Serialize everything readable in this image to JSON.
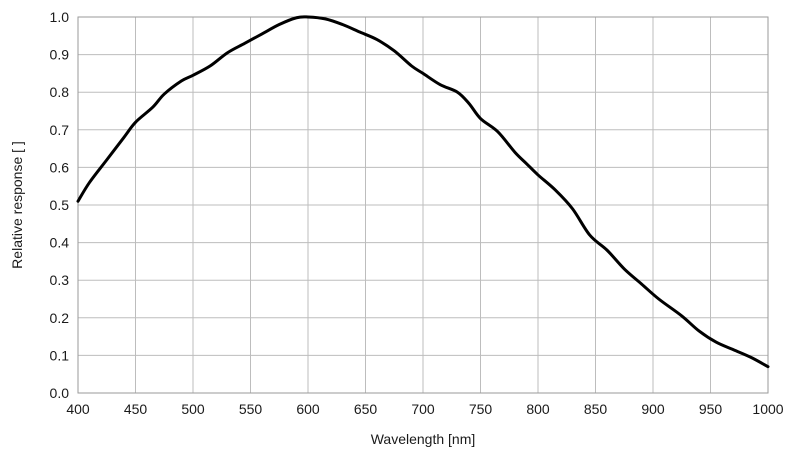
{
  "chart_data": {
    "type": "line",
    "title": "",
    "xlabel": "Wavelength [nm]",
    "ylabel": "Relative response [ ]",
    "xlim": [
      400,
      1000
    ],
    "ylim": [
      0,
      1.0
    ],
    "x_ticks": [
      "400",
      "450",
      "500",
      "550",
      "600",
      "650",
      "700",
      "750",
      "800",
      "850",
      "900",
      "950",
      "1000"
    ],
    "y_ticks": [
      "0.0",
      "0.1",
      "0.2",
      "0.3",
      "0.4",
      "0.5",
      "0.6",
      "0.7",
      "0.8",
      "0.9",
      "1.0"
    ],
    "grid": true,
    "legend": "none",
    "series": [
      {
        "color": "#000000",
        "points": [
          [
            400,
            0.51
          ],
          [
            410,
            0.56
          ],
          [
            425,
            0.62
          ],
          [
            440,
            0.68
          ],
          [
            450,
            0.72
          ],
          [
            465,
            0.76
          ],
          [
            475,
            0.795
          ],
          [
            490,
            0.83
          ],
          [
            500,
            0.845
          ],
          [
            515,
            0.87
          ],
          [
            530,
            0.905
          ],
          [
            545,
            0.93
          ],
          [
            560,
            0.955
          ],
          [
            575,
            0.98
          ],
          [
            590,
            0.998
          ],
          [
            600,
            1.0
          ],
          [
            615,
            0.995
          ],
          [
            630,
            0.98
          ],
          [
            645,
            0.96
          ],
          [
            660,
            0.94
          ],
          [
            675,
            0.91
          ],
          [
            690,
            0.87
          ],
          [
            700,
            0.85
          ],
          [
            715,
            0.82
          ],
          [
            730,
            0.8
          ],
          [
            740,
            0.77
          ],
          [
            750,
            0.73
          ],
          [
            765,
            0.695
          ],
          [
            780,
            0.64
          ],
          [
            790,
            0.61
          ],
          [
            800,
            0.58
          ],
          [
            815,
            0.54
          ],
          [
            830,
            0.49
          ],
          [
            845,
            0.42
          ],
          [
            860,
            0.38
          ],
          [
            875,
            0.33
          ],
          [
            890,
            0.29
          ],
          [
            905,
            0.25
          ],
          [
            925,
            0.205
          ],
          [
            940,
            0.165
          ],
          [
            955,
            0.135
          ],
          [
            970,
            0.115
          ],
          [
            985,
            0.095
          ],
          [
            1000,
            0.07
          ]
        ]
      }
    ]
  }
}
